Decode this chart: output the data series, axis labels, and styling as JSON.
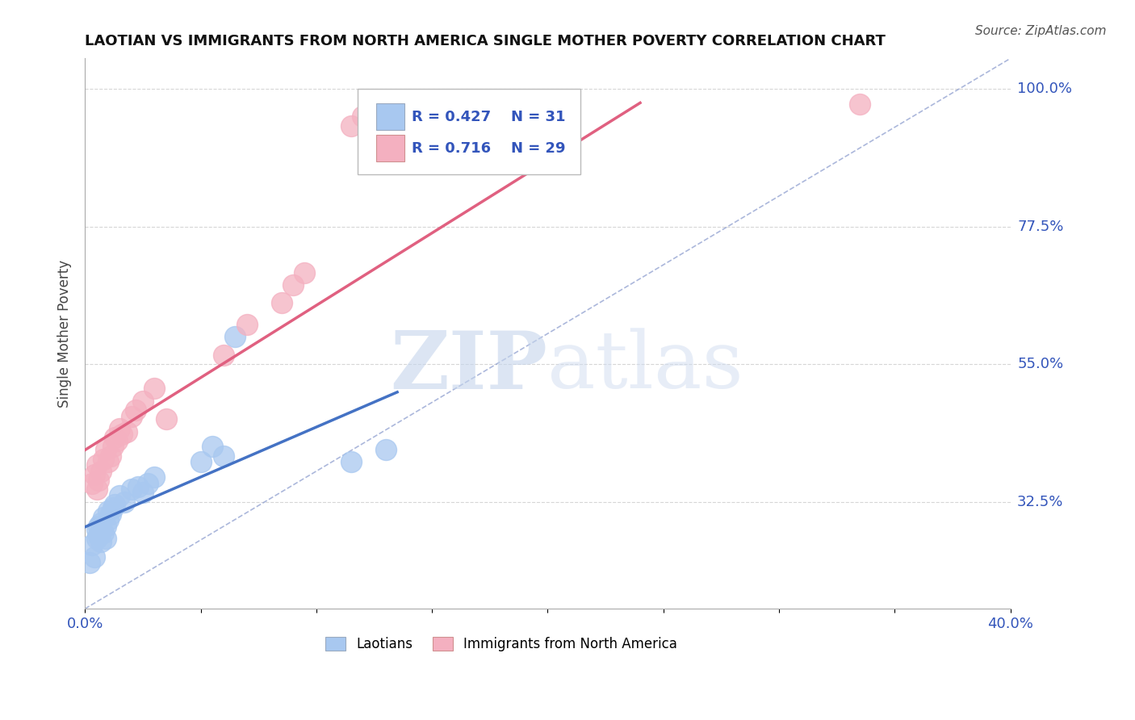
{
  "title": "LAOTIAN VS IMMIGRANTS FROM NORTH AMERICA SINGLE MOTHER POVERTY CORRELATION CHART",
  "source_text": "Source: ZipAtlas.com",
  "ylabel": "Single Mother Poverty",
  "xlim": [
    0.0,
    0.4
  ],
  "ylim": [
    0.15,
    1.05
  ],
  "ytick_positions": [
    0.325,
    0.55,
    0.775,
    1.0
  ],
  "ytick_labels": [
    "32.5%",
    "55.0%",
    "77.5%",
    "100.0%"
  ],
  "blue_color": "#A8C8F0",
  "pink_color": "#F4B0C0",
  "blue_line_color": "#4472C4",
  "pink_line_color": "#E06080",
  "legend_R_blue": "R = 0.427",
  "legend_N_blue": "N = 31",
  "legend_R_pink": "R = 0.716",
  "legend_N_pink": "N = 29",
  "watermark_zip": "ZIP",
  "watermark_atlas": "atlas",
  "watermark_color_zip": "#C8D8F0",
  "watermark_color_atlas": "#D0D8F0",
  "grid_color": "#CCCCCC",
  "blue_scatter_x": [
    0.002,
    0.003,
    0.004,
    0.005,
    0.005,
    0.006,
    0.006,
    0.007,
    0.007,
    0.008,
    0.008,
    0.009,
    0.009,
    0.01,
    0.01,
    0.011,
    0.012,
    0.013,
    0.015,
    0.017,
    0.02,
    0.023,
    0.025,
    0.027,
    0.03,
    0.05,
    0.055,
    0.06,
    0.065,
    0.115,
    0.13
  ],
  "blue_scatter_y": [
    0.225,
    0.255,
    0.235,
    0.265,
    0.28,
    0.27,
    0.285,
    0.26,
    0.29,
    0.275,
    0.3,
    0.285,
    0.265,
    0.295,
    0.31,
    0.305,
    0.315,
    0.32,
    0.335,
    0.325,
    0.345,
    0.35,
    0.34,
    0.355,
    0.365,
    0.39,
    0.415,
    0.4,
    0.595,
    0.39,
    0.41
  ],
  "pink_scatter_x": [
    0.003,
    0.004,
    0.005,
    0.005,
    0.006,
    0.007,
    0.008,
    0.009,
    0.01,
    0.011,
    0.012,
    0.013,
    0.014,
    0.015,
    0.016,
    0.018,
    0.02,
    0.022,
    0.025,
    0.03,
    0.035,
    0.06,
    0.07,
    0.085,
    0.09,
    0.095,
    0.115,
    0.12,
    0.335
  ],
  "pink_scatter_y": [
    0.355,
    0.37,
    0.345,
    0.385,
    0.36,
    0.375,
    0.395,
    0.41,
    0.39,
    0.4,
    0.415,
    0.43,
    0.425,
    0.445,
    0.435,
    0.44,
    0.465,
    0.475,
    0.49,
    0.51,
    0.46,
    0.565,
    0.615,
    0.65,
    0.68,
    0.7,
    0.94,
    0.955,
    0.975
  ],
  "ref_line_x": [
    0.0,
    0.4
  ],
  "ref_line_y": [
    0.15,
    1.05
  ],
  "background_color": "#FFFFFF"
}
